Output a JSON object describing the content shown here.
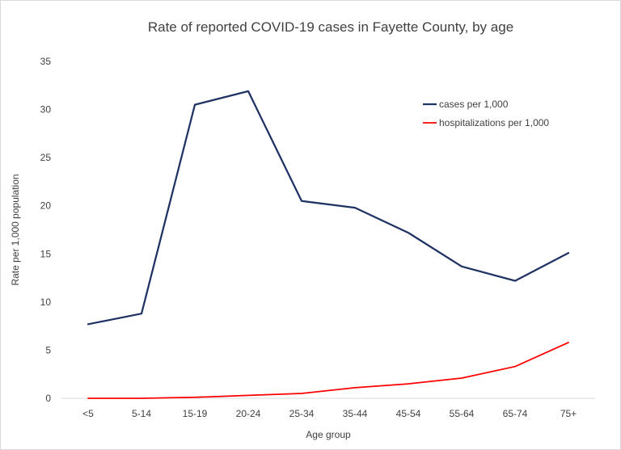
{
  "chart_data": {
    "type": "line",
    "title": "Rate of reported COVID-19 cases in Fayette County, by age",
    "xlabel": "Age group",
    "ylabel": "Rate per 1,000 population",
    "categories": [
      "<5",
      "5-14",
      "15-19",
      "20-24",
      "25-34",
      "35-44",
      "45-54",
      "55-64",
      "65-74",
      "75+"
    ],
    "ylim": [
      0,
      35
    ],
    "yticks": [
      "0",
      "5",
      "10",
      "15",
      "20",
      "25",
      "30",
      "35"
    ],
    "grid": false,
    "legend_position": "top-right",
    "series": [
      {
        "name": "cases per 1,000",
        "color": "#1f3264",
        "values": [
          7.7,
          8.8,
          30.5,
          31.9,
          20.5,
          19.8,
          17.2,
          13.7,
          12.2,
          15.1
        ]
      },
      {
        "name": "hospitalizations per 1,000",
        "color": "#ff0000",
        "values": [
          0.0,
          0.0,
          0.1,
          0.3,
          0.5,
          1.1,
          1.5,
          2.1,
          3.3,
          5.8
        ]
      }
    ]
  }
}
